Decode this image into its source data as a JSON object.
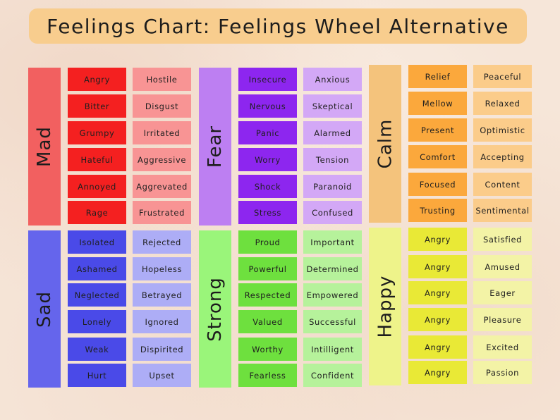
{
  "title": "Feelings Chart: Feelings Wheel Alternative",
  "colors": {
    "background": "#f6e6d9",
    "title_bar": "#f8cd8e",
    "mad": [
      "#f26060",
      "#f42020",
      "#f89494"
    ],
    "fear": [
      "#bd7ff2",
      "#8d26ef",
      "#d3a8f6"
    ],
    "calm": [
      "#f4c37c",
      "#fba83c",
      "#fbcc8a"
    ],
    "sad": [
      "#6565ec",
      "#4a4ae8",
      "#adadf6"
    ],
    "strong": [
      "#9af57a",
      "#6ee03e",
      "#b6f29b"
    ],
    "happy": [
      "#eef38a",
      "#e9e936",
      "#f3f3a6"
    ]
  },
  "categories": [
    {
      "id": "mad",
      "label": "Mad",
      "column1": [
        "Angry",
        "Bitter",
        "Grumpy",
        "Hateful",
        "Annoyed",
        "Rage"
      ],
      "column2": [
        "Hostile",
        "Disgust",
        "Irritated",
        "Aggressive",
        "Aggrevated",
        "Frustrated"
      ]
    },
    {
      "id": "fear",
      "label": "Fear",
      "column1": [
        "Insecure",
        "Nervous",
        "Panic",
        "Worry",
        "Shock",
        "Stress"
      ],
      "column2": [
        "Anxious",
        "Skeptical",
        "Alarmed",
        "Tension",
        "Paranoid",
        "Confused"
      ]
    },
    {
      "id": "calm",
      "label": "Calm",
      "column1": [
        "Relief",
        "Mellow",
        "Present",
        "Comfort",
        "Focused",
        "Trusting"
      ],
      "column2": [
        "Peaceful",
        "Relaxed",
        "Optimistic",
        "Accepting",
        "Content",
        "Sentimental"
      ]
    },
    {
      "id": "sad",
      "label": "Sad",
      "column1": [
        "Isolated",
        "Ashamed",
        "Neglected",
        "Lonely",
        "Weak",
        "Hurt"
      ],
      "column2": [
        "Rejected",
        "Hopeless",
        "Betrayed",
        "Ignored",
        "Dispirited",
        "Upset"
      ]
    },
    {
      "id": "strong",
      "label": "Strong",
      "column1": [
        "Proud",
        "Powerful",
        "Respected",
        "Valued",
        "Worthy",
        "Fearless"
      ],
      "column2": [
        "Important",
        "Determined",
        "Empowered",
        "Successful",
        "Intilligent",
        "Confident"
      ]
    },
    {
      "id": "happy",
      "label": "Happy",
      "column1": [
        "Angry",
        "Angry",
        "Angry",
        "Angry",
        "Angry",
        "Angry"
      ],
      "column2": [
        "Satisfied",
        "Amused",
        "Eager",
        "Pleasure",
        "Excited",
        "Passion"
      ]
    }
  ]
}
